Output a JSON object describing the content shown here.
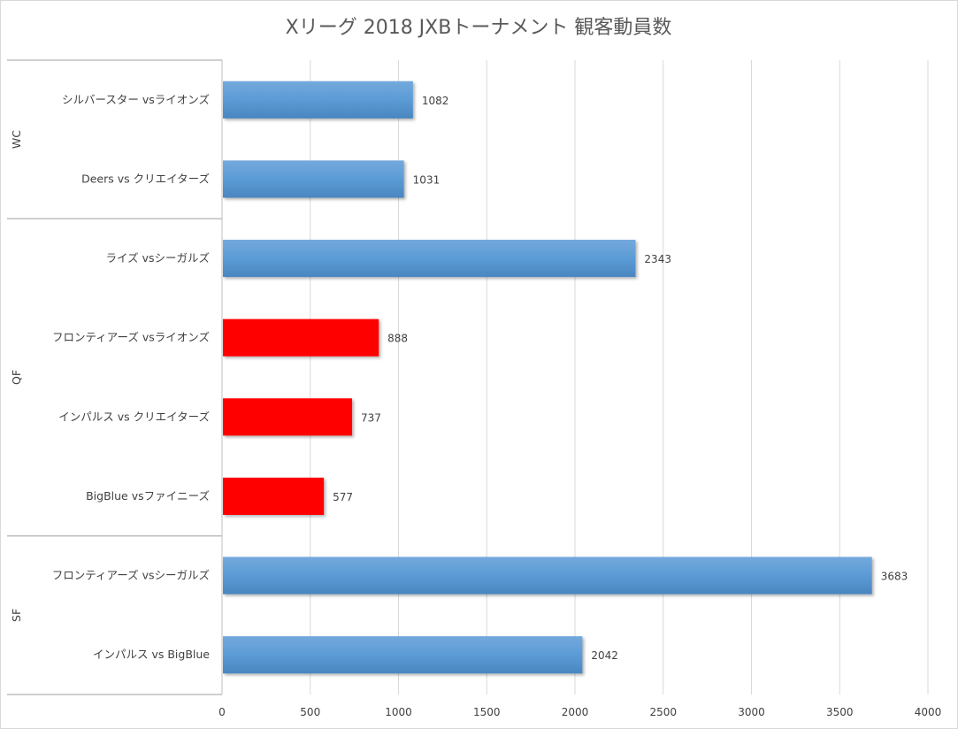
{
  "chart_data": {
    "type": "bar",
    "orientation": "horizontal",
    "title": "Xリーグ 2018 JXBトーナメント 観客動員数",
    "xlabel": "",
    "ylabel": "",
    "xlim": [
      0,
      4000
    ],
    "xticks": [
      "0",
      "500",
      "1000",
      "1500",
      "2000",
      "2500",
      "3000",
      "3500",
      "4000"
    ],
    "grid": true,
    "legend": "none",
    "colors": {
      "blue": "#5b9bd5",
      "red": "#ff0000"
    },
    "groups": [
      {
        "name": "WC",
        "categories": [
          {
            "label": "シルバースター vsライオンズ",
            "value": 1082,
            "color": "blue"
          },
          {
            "label": "Deers vs クリエイターズ",
            "value": 1031,
            "color": "blue"
          }
        ]
      },
      {
        "name": "QF",
        "categories": [
          {
            "label": "ライズ vsシーガルズ",
            "value": 2343,
            "color": "blue"
          },
          {
            "label": "フロンティアーズ vsライオンズ",
            "value": 888,
            "color": "red"
          },
          {
            "label": "インパルス vs クリエイターズ",
            "value": 737,
            "color": "red"
          },
          {
            "label": "BigBlue vsファイニーズ",
            "value": 577,
            "color": "red"
          }
        ]
      },
      {
        "name": "SF",
        "categories": [
          {
            "label": "フロンティアーズ vsシーガルズ",
            "value": 3683,
            "color": "blue"
          },
          {
            "label": "インパルス vs BigBlue",
            "value": 2042,
            "color": "blue"
          }
        ]
      }
    ]
  }
}
